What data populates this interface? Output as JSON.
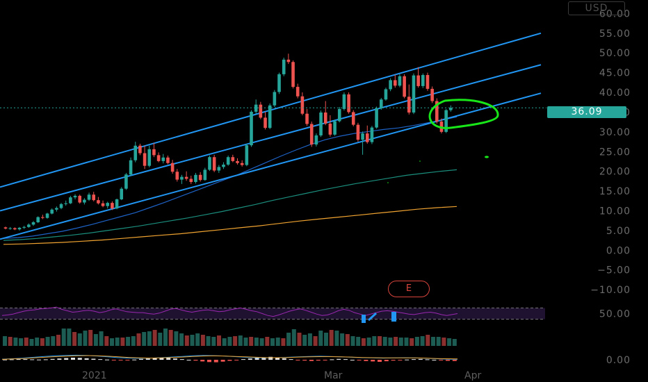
{
  "header": {
    "currency": "USD",
    "last_price": "36.09"
  },
  "events": {
    "earnings_label": "E"
  },
  "colors": {
    "up": "#26a69a",
    "down": "#ef5350",
    "channel": "#2196f3",
    "ma_fast": "#1e63c7",
    "ma_mid": "#1b8f7e",
    "ma_slow": "#f0a330",
    "rsi": "#9c27b0",
    "rsi_band": "#1e1230",
    "annotation": "#19e619",
    "macd_hist_pos": "#e8e8e8",
    "macd_hist_neg": "#ef5350"
  },
  "chart_data": [
    {
      "type": "candlestick",
      "panel": "price",
      "y_ticks": [
        "60.00",
        "55.00",
        "50.00",
        "45.00",
        "40.00",
        "35.00",
        "30.00",
        "25.00",
        "20.00",
        "15.00",
        "10.00",
        "5.00",
        "0.00",
        "−5.00",
        "−10.00"
      ],
      "y_tick_values": [
        60,
        55,
        50,
        45,
        40,
        35,
        30,
        25,
        20,
        15,
        10,
        5,
        0,
        -5,
        -10
      ],
      "ylim": [
        -10.5,
        62
      ],
      "x_labels": [
        "2021",
        "Mar",
        "Apr"
      ],
      "last_price": 36.09,
      "candles": [
        [
          5.8,
          6.0,
          5.3,
          5.5
        ],
        [
          5.5,
          5.9,
          5.2,
          5.6
        ],
        [
          5.6,
          5.8,
          5.1,
          5.3
        ],
        [
          5.3,
          5.9,
          5.0,
          5.7
        ],
        [
          5.7,
          6.2,
          5.4,
          5.9
        ],
        [
          5.9,
          6.8,
          5.7,
          6.5
        ],
        [
          6.5,
          7.4,
          6.2,
          7.1
        ],
        [
          7.1,
          8.6,
          6.9,
          8.4
        ],
        [
          8.4,
          9.0,
          7.9,
          8.2
        ],
        [
          8.2,
          9.5,
          8.0,
          9.3
        ],
        [
          9.3,
          10.6,
          9.1,
          10.3
        ],
        [
          10.3,
          11.1,
          9.8,
          10.7
        ],
        [
          10.7,
          12.0,
          10.4,
          11.7
        ],
        [
          11.7,
          12.6,
          11.3,
          11.9
        ],
        [
          11.9,
          13.8,
          11.7,
          13.4
        ],
        [
          13.4,
          14.2,
          12.9,
          13.8
        ],
        [
          13.8,
          14.1,
          11.8,
          12.1
        ],
        [
          12.1,
          13.2,
          11.6,
          12.8
        ],
        [
          12.8,
          14.6,
          12.5,
          14.1
        ],
        [
          14.1,
          14.8,
          12.4,
          12.7
        ],
        [
          12.7,
          13.5,
          11.6,
          11.9
        ],
        [
          11.9,
          12.6,
          10.9,
          11.2
        ],
        [
          11.2,
          12.3,
          10.6,
          12.0
        ],
        [
          12.0,
          12.4,
          10.2,
          10.6
        ],
        [
          10.6,
          13.1,
          10.4,
          12.9
        ],
        [
          12.9,
          16.0,
          12.7,
          15.6
        ],
        [
          15.6,
          19.6,
          15.3,
          19.2
        ],
        [
          19.2,
          23.5,
          18.8,
          22.8
        ],
        [
          22.8,
          27.5,
          22.3,
          26.5
        ],
        [
          26.5,
          27.0,
          24.1,
          24.6
        ],
        [
          24.6,
          26.5,
          20.6,
          21.4
        ],
        [
          21.4,
          26.5,
          21.0,
          25.6
        ],
        [
          25.6,
          27.2,
          23.6,
          24.1
        ],
        [
          24.1,
          24.8,
          22.3,
          22.6
        ],
        [
          22.6,
          24.4,
          22.0,
          23.5
        ],
        [
          23.5,
          24.0,
          21.8,
          22.1
        ],
        [
          22.1,
          22.9,
          19.4,
          19.9
        ],
        [
          19.9,
          20.6,
          17.4,
          17.9
        ],
        [
          17.9,
          19.1,
          16.8,
          18.6
        ],
        [
          18.6,
          20.0,
          17.6,
          18.1
        ],
        [
          18.1,
          18.9,
          16.8,
          17.3
        ],
        [
          17.3,
          19.6,
          16.9,
          19.1
        ],
        [
          19.1,
          19.8,
          17.4,
          17.8
        ],
        [
          17.8,
          20.9,
          17.6,
          20.4
        ],
        [
          20.4,
          24.0,
          20.1,
          23.6
        ],
        [
          23.6,
          24.2,
          19.8,
          20.2
        ],
        [
          20.2,
          21.6,
          19.6,
          21.1
        ],
        [
          21.1,
          22.3,
          20.6,
          21.7
        ],
        [
          21.7,
          24.0,
          21.4,
          23.6
        ],
        [
          23.6,
          24.2,
          22.3,
          22.6
        ],
        [
          22.6,
          23.3,
          21.7,
          22.1
        ],
        [
          22.1,
          22.8,
          21.2,
          21.6
        ],
        [
          21.6,
          27.0,
          21.3,
          26.6
        ],
        [
          26.6,
          35.5,
          26.2,
          35.1
        ],
        [
          35.1,
          38.2,
          34.6,
          36.9
        ],
        [
          36.9,
          37.6,
          33.2,
          33.6
        ],
        [
          33.6,
          35.1,
          30.6,
          31.0
        ],
        [
          31.0,
          37.2,
          30.7,
          36.7
        ],
        [
          36.7,
          40.6,
          36.3,
          40.1
        ],
        [
          40.1,
          45.0,
          39.6,
          44.6
        ],
        [
          44.6,
          48.8,
          44.1,
          48.3
        ],
        [
          48.3,
          49.8,
          47.2,
          47.7
        ],
        [
          47.7,
          48.1,
          41.0,
          41.4
        ],
        [
          41.4,
          42.2,
          38.5,
          39.0
        ],
        [
          39.0,
          40.0,
          34.2,
          34.6
        ],
        [
          34.6,
          35.8,
          31.5,
          32.0
        ],
        [
          32.0,
          32.6,
          26.2,
          26.8
        ],
        [
          26.8,
          29.6,
          26.3,
          29.1
        ],
        [
          29.1,
          35.4,
          28.7,
          34.9
        ],
        [
          34.9,
          37.8,
          31.7,
          32.1
        ],
        [
          32.1,
          34.2,
          28.8,
          29.3
        ],
        [
          29.3,
          33.1,
          29.0,
          32.7
        ],
        [
          32.7,
          36.3,
          32.4,
          35.8
        ],
        [
          35.8,
          40.0,
          35.4,
          39.5
        ],
        [
          39.5,
          40.0,
          34.6,
          35.0
        ],
        [
          35.0,
          35.5,
          31.4,
          31.8
        ],
        [
          31.8,
          32.3,
          27.5,
          28.0
        ],
        [
          28.0,
          30.1,
          24.2,
          29.6
        ],
        [
          29.6,
          31.6,
          27.0,
          27.4
        ],
        [
          27.4,
          31.5,
          26.9,
          31.1
        ],
        [
          31.1,
          36.4,
          30.8,
          36.0
        ],
        [
          36.0,
          38.6,
          35.6,
          38.2
        ],
        [
          38.2,
          41.2,
          37.9,
          40.8
        ],
        [
          40.8,
          43.6,
          40.3,
          43.1
        ],
        [
          43.1,
          44.5,
          41.2,
          41.7
        ],
        [
          41.7,
          44.6,
          41.3,
          44.1
        ],
        [
          44.1,
          44.6,
          38.5,
          38.9
        ],
        [
          38.9,
          42.0,
          34.4,
          34.9
        ],
        [
          34.9,
          44.8,
          34.5,
          44.3
        ],
        [
          44.3,
          46.4,
          41.2,
          41.6
        ],
        [
          41.6,
          44.8,
          41.1,
          44.4
        ],
        [
          44.4,
          45.0,
          40.4,
          40.9
        ],
        [
          40.9,
          41.5,
          37.3,
          37.8
        ],
        [
          37.8,
          38.5,
          32.1,
          32.6
        ],
        [
          32.6,
          33.4,
          29.6,
          30.0
        ],
        [
          30.0,
          35.8,
          29.7,
          35.5
        ],
        [
          35.5,
          36.7,
          35.1,
          36.09
        ]
      ],
      "channel_lines": [
        {
          "from": [
            0,
            16.0
          ],
          "to": [
            146,
            55.0
          ]
        },
        {
          "from": [
            0,
            10.0
          ],
          "to": [
            146,
            47.0
          ]
        },
        {
          "from": [
            0,
            2.8
          ],
          "to": [
            146,
            39.8
          ]
        }
      ],
      "moving_averages": [
        {
          "color_key": "ma_fast",
          "values": [
            3.0,
            3.2,
            3.6,
            4.2,
            4.8,
            5.6,
            6.5,
            7.5,
            8.5,
            9.5,
            10.8,
            12.1,
            13.5,
            14.9,
            16.3,
            17.7,
            19.1,
            20.7,
            22.3,
            23.9,
            25.4,
            26.8,
            28.0,
            28.9,
            29.6,
            30.1,
            30.6,
            31.0,
            31.6,
            32.3,
            33.0,
            33.8
          ]
        },
        {
          "color_key": "ma_mid",
          "values": [
            2.5,
            2.7,
            3.0,
            3.4,
            3.8,
            4.3,
            4.9,
            5.5,
            6.1,
            6.8,
            7.5,
            8.2,
            9.0,
            9.8,
            10.7,
            11.6,
            12.6,
            13.5,
            14.4,
            15.3,
            16.1,
            16.9,
            17.6,
            18.3,
            19.0,
            19.5,
            20.0,
            20.4
          ]
        },
        {
          "color_key": "ma_slow",
          "values": [
            1.5,
            1.6,
            1.8,
            2.0,
            2.3,
            2.6,
            3.0,
            3.4,
            3.8,
            4.2,
            4.7,
            5.2,
            5.7,
            6.2,
            6.8,
            7.4,
            7.9,
            8.4,
            8.9,
            9.4,
            9.9,
            10.4,
            10.8,
            11.1
          ]
        }
      ]
    },
    {
      "type": "line",
      "panel": "rsi",
      "y_ticks": [
        "50.00"
      ],
      "y_tick_values": [
        50
      ],
      "ylim": [
        30,
        70
      ],
      "band": [
        38,
        62
      ],
      "values": [
        46,
        47,
        49,
        52,
        55,
        57,
        58,
        60,
        61,
        62,
        64,
        59,
        56,
        53,
        54,
        56,
        57,
        55,
        52,
        54,
        58,
        60,
        57,
        54,
        53,
        52,
        52,
        50,
        49,
        51,
        55,
        59,
        61,
        58,
        55,
        53,
        55,
        57,
        58,
        56,
        54,
        55,
        58,
        60,
        62,
        59,
        56,
        54,
        50,
        46,
        44,
        47,
        51,
        55,
        58,
        60,
        57,
        53,
        49,
        46,
        47,
        51,
        56,
        59,
        57,
        52,
        49,
        46,
        49,
        52,
        55,
        56,
        55,
        53,
        51,
        49,
        48,
        50,
        52,
        53,
        51,
        48,
        46,
        48,
        50
      ]
    },
    {
      "type": "bar",
      "panel": "volume",
      "values": [
        14,
        13,
        12,
        11,
        12,
        10,
        12,
        11,
        13,
        14,
        16,
        25,
        25,
        20,
        18,
        22,
        23,
        17,
        21,
        14,
        11,
        12,
        12,
        13,
        14,
        18,
        20,
        21,
        23,
        19,
        25,
        23,
        21,
        18,
        15,
        16,
        18,
        16,
        14,
        13,
        15,
        11,
        13,
        14,
        15,
        12,
        13,
        12,
        11,
        13,
        11,
        12,
        11,
        19,
        24,
        19,
        16,
        18,
        14,
        22,
        19,
        23,
        22,
        18,
        17,
        14,
        13,
        11,
        12,
        14,
        14,
        13,
        12,
        13,
        12,
        12,
        11,
        13,
        14,
        16,
        13,
        13,
        12,
        11,
        10
      ],
      "ylim": [
        0,
        30
      ]
    },
    {
      "type": "bar",
      "panel": "macd",
      "y_ticks": [
        "0.00"
      ],
      "y_tick_values": [
        0
      ],
      "ylim": [
        -4,
        4
      ],
      "histogram": [
        0.1,
        0.2,
        0.3,
        0.3,
        0.2,
        0.1,
        0.2,
        0.4,
        0.6,
        0.8,
        1.0,
        0.9,
        0.7,
        0.5,
        0.3,
        0.1,
        -0.1,
        -0.3,
        -0.2,
        0.1,
        0.4,
        0.6,
        0.8,
        1.0,
        0.9,
        0.6,
        0.3,
        0.0,
        -0.4,
        -0.8,
        -1.1,
        -1.2,
        -0.9,
        -0.5,
        -0.1,
        0.3,
        0.6,
        0.9,
        1.2,
        1.4,
        1.1,
        0.7,
        0.3,
        -0.1,
        -0.4,
        -0.6,
        -0.4,
        -0.1,
        0.2,
        0.4,
        0.3,
        0.0,
        -0.3,
        -0.6,
        -0.8,
        -1.0,
        -0.7,
        -0.4,
        -0.2,
        0.1,
        0.3,
        0.4,
        0.2,
        0.0,
        -0.2,
        -0.5,
        -0.6
      ],
      "macd": [
        0.3,
        0.5,
        0.8,
        1.2,
        1.6,
        1.9,
        2.1,
        2.2,
        2.1,
        1.8,
        1.4,
        1.0,
        0.8,
        0.7,
        0.8,
        1.0,
        1.3,
        1.6,
        1.9,
        2.1,
        2.0,
        1.8,
        1.5,
        1.2,
        1.0,
        0.9,
        1.0,
        1.2,
        1.4,
        1.6,
        1.7,
        1.6,
        1.4,
        1.2,
        1.0,
        0.9,
        0.8,
        0.9,
        1.0,
        0.9,
        0.7,
        0.5,
        0.3,
        0.2
      ],
      "signal": [
        0.2,
        0.4,
        0.6,
        0.9,
        1.2,
        1.5,
        1.7,
        1.9,
        2.0,
        1.9,
        1.7,
        1.4,
        1.1,
        0.9,
        0.8,
        0.9,
        1.1,
        1.3,
        1.6,
        1.8,
        1.9,
        1.8,
        1.6,
        1.4,
        1.2,
        1.0,
        1.0,
        1.1,
        1.3,
        1.4,
        1.5,
        1.5,
        1.4,
        1.3,
        1.1,
        1.0,
        0.9,
        0.9,
        0.9,
        0.9,
        0.8,
        0.6,
        0.5,
        0.4
      ]
    }
  ]
}
